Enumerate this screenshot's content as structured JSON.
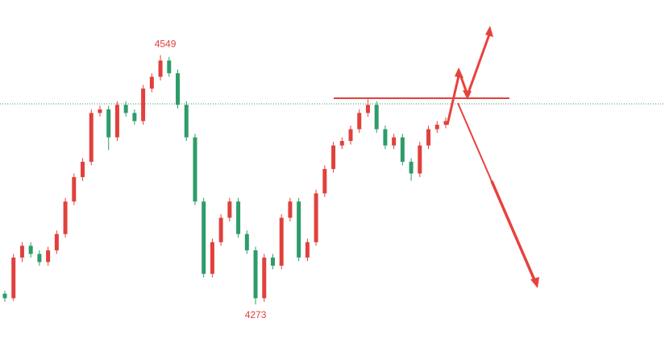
{
  "chart_data": {
    "type": "candlestick",
    "open": [
      4285,
      4280,
      4325,
      4338,
      4329,
      4320,
      4333,
      4351,
      4387,
      4414,
      4431,
      4485,
      4489,
      4458,
      4494,
      4485,
      4476,
      4512,
      4525,
      4543,
      4529,
      4494,
      4458,
      4387,
      4307,
      4342,
      4369,
      4387,
      4351,
      4333,
      4280,
      4325,
      4316,
      4369,
      4387,
      4325,
      4342,
      4396,
      4423,
      4449,
      4454,
      4467,
      4485,
      4494,
      4467,
      4449,
      4458,
      4431,
      4418,
      4449,
      4467,
      4472
    ],
    "high": [
      4288,
      4329,
      4342,
      4342,
      4333,
      4337,
      4355,
      4391,
      4418,
      4435,
      4489,
      4493,
      4493,
      4498,
      4498,
      4489,
      4516,
      4529,
      4549,
      4547,
      4533,
      4498,
      4462,
      4391,
      4346,
      4373,
      4391,
      4391,
      4355,
      4337,
      4329,
      4329,
      4373,
      4391,
      4391,
      4346,
      4400,
      4427,
      4453,
      4458,
      4471,
      4489,
      4500,
      4498,
      4471,
      4462,
      4462,
      4435,
      4453,
      4471,
      4476,
      4480
    ],
    "low": [
      4276,
      4277,
      4320,
      4325,
      4316,
      4316,
      4329,
      4347,
      4383,
      4410,
      4427,
      4481,
      4444,
      4454,
      4481,
      4472,
      4472,
      4508,
      4521,
      4525,
      4490,
      4454,
      4383,
      4303,
      4303,
      4338,
      4365,
      4347,
      4329,
      4273,
      4276,
      4312,
      4312,
      4365,
      4321,
      4321,
      4338,
      4392,
      4419,
      4445,
      4450,
      4463,
      4481,
      4463,
      4445,
      4445,
      4427,
      4410,
      4414,
      4445,
      4463,
      4468
    ],
    "close": [
      4280,
      4325,
      4338,
      4329,
      4320,
      4333,
      4351,
      4387,
      4414,
      4431,
      4485,
      4489,
      4458,
      4494,
      4485,
      4476,
      4512,
      4525,
      4543,
      4529,
      4494,
      4458,
      4387,
      4307,
      4342,
      4369,
      4387,
      4351,
      4333,
      4280,
      4325,
      4316,
      4369,
      4387,
      4325,
      4342,
      4396,
      4423,
      4449,
      4454,
      4467,
      4485,
      4494,
      4467,
      4449,
      4458,
      4431,
      4418,
      4449,
      4467,
      4472,
      4476
    ],
    "up_color": "#e0413d",
    "down_color": "#2e9c6a",
    "ylim": [
      4226,
      4610
    ],
    "annotations": [
      {
        "value": 4549,
        "label": "4549"
      },
      {
        "value": 4273,
        "label": "4273"
      }
    ]
  }
}
